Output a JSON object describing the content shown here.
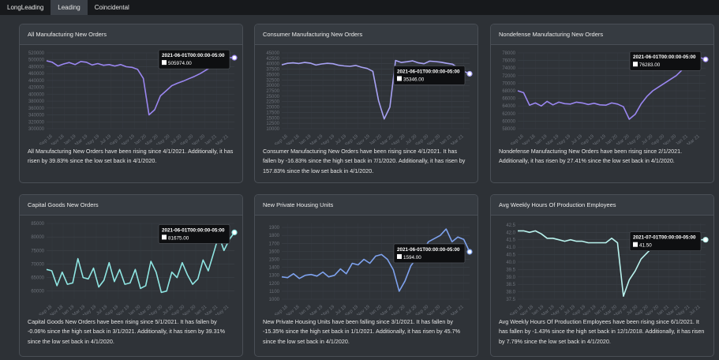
{
  "tabs": [
    {
      "label": "LongLeading",
      "active": false
    },
    {
      "label": "Leading",
      "active": true
    },
    {
      "label": "Coincidental",
      "active": false
    }
  ],
  "cards": [
    {
      "title": "All Manufacturing New Orders",
      "description": "All Manufacturing New Orders have been rising since 4/1/2021. Additionally, it has risen by 39.83% since the low set back in 4/1/2020.",
      "tooltip_date": "2021-06-01T00:00:00-05:00",
      "tooltip_value": "505974.00",
      "color": "#9a86f0"
    },
    {
      "title": "Consumer Manufacturing New Orders",
      "description": "Consumer Manufacturing New Orders have been rising since 4/1/2021. It has fallen by -16.83% since the high set back in 7/1/2020. Additionally, it has risen by 157.83% since the low set back in 4/1/2020.",
      "tooltip_date": "2021-06-01T00:00:00-05:00",
      "tooltip_value": "35346.00",
      "color": "#a8a2f4"
    },
    {
      "title": "Nondefense Manufacturing New Orders",
      "description": "Nondefense Manufacturing New Orders have been rising since 2/1/2021. Additionally, it has risen by 27.41% since the low set back in 4/1/2020.",
      "tooltip_date": "2021-06-01T00:00:00-05:00",
      "tooltip_value": "76283.00",
      "color": "#9a86f0"
    },
    {
      "title": "Capital Goods New Orders",
      "description": "Capital Goods New Orders have been rising since 5/1/2021. It has fallen by -0.06% since the high set back in 3/1/2021. Additionally, it has risen by 39.31% since the low set back in 4/1/2020.",
      "tooltip_date": "2021-06-01T00:00:00-05:00",
      "tooltip_value": "81675.00",
      "color": "#8fe6e3"
    },
    {
      "title": "New Private Housing Units",
      "description": "New Private Housing Units have been falling since 3/1/2021. It has fallen by -15.35% since the high set back in 1/1/2021. Additionally, it has risen by 45.7% since the low set back in 4/1/2020.",
      "tooltip_date": "2021-06-01T00:00:00-05:00",
      "tooltip_value": "1594.00",
      "color": "#7ea2ee"
    },
    {
      "title": "Avg Weekly Hours Of Production Employees",
      "description": "Avg Weekly Hours Of Production Employees have been rising since 6/1/2021. It has fallen by -1.43% since the high set back in 12/1/2018. Additionally, it has risen by 7.79% since the low set back in 4/1/2020.",
      "tooltip_date": "2021-07-01T00:00:00-05:00",
      "tooltip_value": "41.50",
      "color": "#b9f3ee"
    }
  ],
  "chart_data": [
    {
      "type": "line",
      "yticks": [
        "520000",
        "500000",
        "480000",
        "460000",
        "440000",
        "420000",
        "400000",
        "380000",
        "360000",
        "340000",
        "320000",
        "300000"
      ],
      "xticks": [
        "Sep 18",
        "Nov 18",
        "Jan 19",
        "Mar 19",
        "May 19",
        "Jul 19",
        "Sep 19",
        "Nov 19",
        "Jan 20",
        "Mar 20",
        "May 20",
        "Jul 20",
        "Sep 20",
        "Nov 20",
        "Jan 21",
        "Mar 21"
      ],
      "ylim": [
        300000,
        520000
      ],
      "values": [
        497000,
        493000,
        482000,
        488000,
        492000,
        486000,
        495000,
        493000,
        485000,
        489000,
        484000,
        486000,
        482000,
        486000,
        480000,
        478000,
        472000,
        446000,
        340000,
        355000,
        395000,
        410000,
        425000,
        432000,
        438000,
        445000,
        452000,
        460000,
        470000,
        480000,
        492000,
        500000,
        506000,
        505974
      ]
    },
    {
      "type": "line",
      "yticks": [
        "45000",
        "42500",
        "40000",
        "37500",
        "35000",
        "32500",
        "30000",
        "27500",
        "25000",
        "22500",
        "20000",
        "17500",
        "15000",
        "12500",
        "10000"
      ],
      "xticks": [
        "Sep 18",
        "Nov 18",
        "Jan 19",
        "Mar 19",
        "May 19",
        "Jul 19",
        "Sep 19",
        "Nov 19",
        "Jan 20",
        "Mar 20",
        "May 20",
        "Jul 20",
        "Sep 20",
        "Nov 20",
        "Jan 21",
        "Mar 21"
      ],
      "ylim": [
        10000,
        45000
      ],
      "values": [
        39500,
        40200,
        40400,
        40100,
        40600,
        40300,
        39400,
        39900,
        40200,
        40000,
        39300,
        39000,
        38800,
        39200,
        38400,
        37800,
        36500,
        23000,
        14500,
        20000,
        41500,
        40600,
        40900,
        41300,
        40400,
        40000,
        41200,
        41000,
        40700,
        40200,
        39800,
        38000,
        36500,
        35346
      ]
    },
    {
      "type": "line",
      "yticks": [
        "78000",
        "76000",
        "74000",
        "72000",
        "70000",
        "68000",
        "66000",
        "64000",
        "62000",
        "60000",
        "58000"
      ],
      "xticks": [
        "Sep 18",
        "Nov 18",
        "Jan 19",
        "Mar 19",
        "May 19",
        "Jul 19",
        "Sep 19",
        "Nov 19",
        "Jan 20",
        "Mar 20",
        "May 20",
        "Jul 20",
        "Sep 20",
        "Nov 20",
        "Jan 21",
        "Mar 21"
      ],
      "ylim": [
        58000,
        78000
      ],
      "values": [
        68000,
        67500,
        64200,
        64800,
        64000,
        65200,
        64300,
        65000,
        64600,
        64500,
        65000,
        64800,
        64400,
        64700,
        64300,
        64200,
        64800,
        64500,
        63800,
        60500,
        61800,
        64500,
        66500,
        68000,
        69000,
        70000,
        71000,
        72000,
        73500,
        75000,
        76000,
        76800,
        76283
      ]
    },
    {
      "type": "line",
      "yticks": [
        "85000",
        "80000",
        "75000",
        "70000",
        "65000",
        "60000"
      ],
      "xticks": [
        "Sep 18",
        "Nov 18",
        "Jan 19",
        "Mar 19",
        "May 19",
        "Jul 19",
        "Sep 19",
        "Nov 19",
        "Jan 20",
        "Mar 20",
        "May 20",
        "Jul 20",
        "Sep 20",
        "Nov 20",
        "Jan 21",
        "Mar 21",
        "May 21"
      ],
      "ylim": [
        57000,
        85000
      ],
      "values": [
        68000,
        67500,
        62000,
        67000,
        62500,
        63000,
        72000,
        65000,
        64500,
        68500,
        61500,
        64000,
        70500,
        63500,
        68000,
        62500,
        63000,
        68000,
        61000,
        62000,
        71000,
        67000,
        59500,
        60000,
        67000,
        65000,
        70500,
        66000,
        62500,
        64500,
        71500,
        67500,
        74000,
        80500,
        75000,
        79000,
        81675
      ]
    },
    {
      "type": "line",
      "yticks": [
        "1900",
        "1800",
        "1700",
        "1600",
        "1500",
        "1400",
        "1300",
        "1200",
        "1100",
        "1000"
      ],
      "xticks": [
        "Sep 18",
        "Nov 18",
        "Jan 19",
        "Mar 19",
        "May 19",
        "Jul 19",
        "Sep 19",
        "Nov 19",
        "Jan 20",
        "Mar 20",
        "May 20",
        "Jul 20",
        "Sep 20",
        "Nov 20",
        "Jan 21",
        "Mar 21"
      ],
      "ylim": [
        1000,
        1950
      ],
      "values": [
        1280,
        1270,
        1320,
        1260,
        1300,
        1310,
        1290,
        1340,
        1280,
        1300,
        1380,
        1320,
        1450,
        1430,
        1500,
        1450,
        1540,
        1560,
        1500,
        1370,
        1100,
        1230,
        1420,
        1520,
        1600,
        1720,
        1760,
        1800,
        1880,
        1720,
        1780,
        1750,
        1594
      ]
    },
    {
      "type": "line",
      "yticks": [
        "42.5",
        "42.0",
        "41.5",
        "41.0",
        "40.5",
        "40.0",
        "39.5",
        "39.0",
        "38.5",
        "38.0",
        "37.5"
      ],
      "xticks": [
        "Sep 18",
        "Nov 18",
        "Jan 19",
        "Mar 19",
        "May 19",
        "Jul 19",
        "Sep 19",
        "Nov 19",
        "Jan 20",
        "Mar 20",
        "May 20",
        "Jul 20",
        "Sep 20",
        "Nov 20",
        "Jan 21",
        "Mar 21",
        "May 21",
        "Jul 21"
      ],
      "ylim": [
        37.5,
        42.6
      ],
      "values": [
        42.1,
        42.1,
        42.0,
        42.1,
        41.9,
        41.6,
        41.6,
        41.5,
        41.4,
        41.5,
        41.4,
        41.4,
        41.3,
        41.3,
        41.3,
        41.3,
        41.6,
        41.3,
        37.7,
        38.8,
        39.4,
        40.2,
        40.6,
        41.0,
        41.2,
        41.3,
        41.4,
        41.5,
        41.5,
        41.6,
        41.5,
        41.5,
        41.5
      ]
    }
  ]
}
